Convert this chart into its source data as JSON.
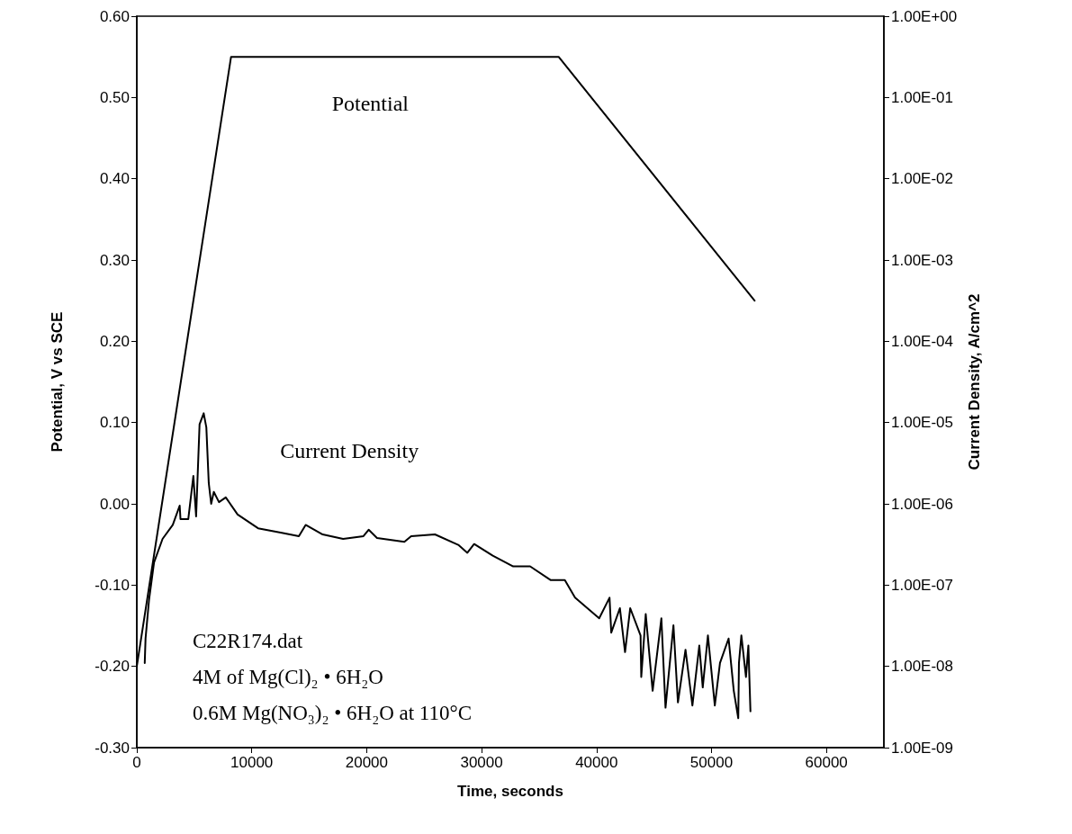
{
  "chart_data": {
    "type": "line",
    "xlabel": "Time, seconds",
    "ylabel": "Potential, V vs SCE",
    "y2label": "Current Density, A/cm^2",
    "xlim": [
      0,
      65000
    ],
    "xticks": [
      0,
      10000,
      20000,
      30000,
      40000,
      50000,
      60000
    ],
    "ylim": [
      -0.3,
      0.6
    ],
    "yticks": [
      {
        "value": -0.3,
        "label": "-0.30"
      },
      {
        "value": -0.2,
        "label": "-0.20"
      },
      {
        "value": -0.1,
        "label": "-0.10"
      },
      {
        "value": 0,
        "label": "0.00"
      },
      {
        "value": 0.1,
        "label": "0.10"
      },
      {
        "value": 0.2,
        "label": "0.20"
      },
      {
        "value": 0.3,
        "label": "0.30"
      },
      {
        "value": 0.4,
        "label": "0.40"
      },
      {
        "value": 0.5,
        "label": "0.50"
      },
      {
        "value": 0.6,
        "label": "0.60"
      }
    ],
    "y2lim": [
      1e-09,
      1
    ],
    "y2ticks": [
      {
        "value": 1e-09,
        "label": "1.00E-09"
      },
      {
        "value": 1e-08,
        "label": "1.00E-08"
      },
      {
        "value": 1e-07,
        "label": "1.00E-07"
      },
      {
        "value": 1e-06,
        "label": "1.00E-06"
      },
      {
        "value": 1e-05,
        "label": "1.00E-05"
      },
      {
        "value": 0.0001,
        "label": "1.00E-04"
      },
      {
        "value": 0.001,
        "label": "1.00E-03"
      },
      {
        "value": 0.01,
        "label": "1.00E-02"
      },
      {
        "value": 0.1,
        "label": "1.00E-01"
      },
      {
        "value": 1,
        "label": "1.00E+00"
      }
    ],
    "log": "y2",
    "grid": false,
    "legend": false,
    "marker": "none",
    "line_style": "solid",
    "series": [
      {
        "name": "Potential",
        "color": "#000000",
        "x": [
          0,
          8200,
          36700,
          53750
        ],
        "values": [
          -0.2,
          0.55,
          0.55,
          0.25
        ]
      },
      {
        "name": "Current Density",
        "color": "#000000",
        "axis": "y2",
        "x": [
          690,
          760,
          1060,
          1500,
          2240,
          3130,
          3730,
          3800,
          4480,
          4920,
          5160,
          5460,
          5820,
          6050,
          6260,
          6470,
          6700,
          7150,
          7740,
          8770,
          10550,
          12620,
          14100,
          14690,
          16170,
          17950,
          19720,
          20170,
          20900,
          23280,
          23870,
          25940,
          28010,
          28760,
          29350,
          30970,
          32750,
          34220,
          36020,
          37240,
          38130,
          40230,
          41130,
          41280,
          42030,
          42480,
          42930,
          43830,
          43890,
          44280,
          44880,
          45640,
          46000,
          46690,
          47080,
          47740,
          48340,
          48940,
          49240,
          49690,
          50290,
          50740,
          51490,
          51940,
          52330,
          52390,
          52600,
          53000,
          53210,
          53390
        ],
        "values": [
          1.1e-08,
          2.2e-08,
          6.5e-08,
          1.9e-07,
          3.7e-07,
          5.5e-07,
          9.5e-07,
          6.5e-07,
          6.5e-07,
          2.2e-06,
          7e-07,
          9.5e-06,
          1.3e-05,
          8.7e-06,
          1.8e-06,
          1e-06,
          1.4e-06,
          1.05e-06,
          1.2e-06,
          7.4e-07,
          5e-07,
          4.4e-07,
          4e-07,
          5.5e-07,
          4.2e-07,
          3.7e-07,
          4e-07,
          4.8e-07,
          3.8e-07,
          3.4e-07,
          4e-07,
          4.2e-07,
          3.1e-07,
          2.5e-07,
          3.2e-07,
          2.3e-07,
          1.7e-07,
          1.7e-07,
          1.15e-07,
          1.15e-07,
          7e-08,
          3.9e-08,
          7e-08,
          2.6e-08,
          5.2e-08,
          1.5e-08,
          5.2e-08,
          2.4e-08,
          7.4e-09,
          4.4e-08,
          5e-09,
          3.9e-08,
          3.1e-09,
          3.2e-08,
          3.6e-09,
          1.6e-08,
          3.3e-09,
          1.8e-08,
          5.5e-09,
          2.4e-08,
          3.3e-09,
          1.1e-08,
          2.2e-08,
          5e-09,
          2.3e-09,
          1.1e-08,
          2.4e-08,
          7.4e-09,
          1.8e-08,
          2.8e-09
        ]
      }
    ],
    "annotations": [
      "C22R174.dat",
      "4M of Mg(Cl)₂ • 6H₂O",
      "0.6M Mg(NO₃)₂ • 6H₂O at 110°C"
    ]
  }
}
